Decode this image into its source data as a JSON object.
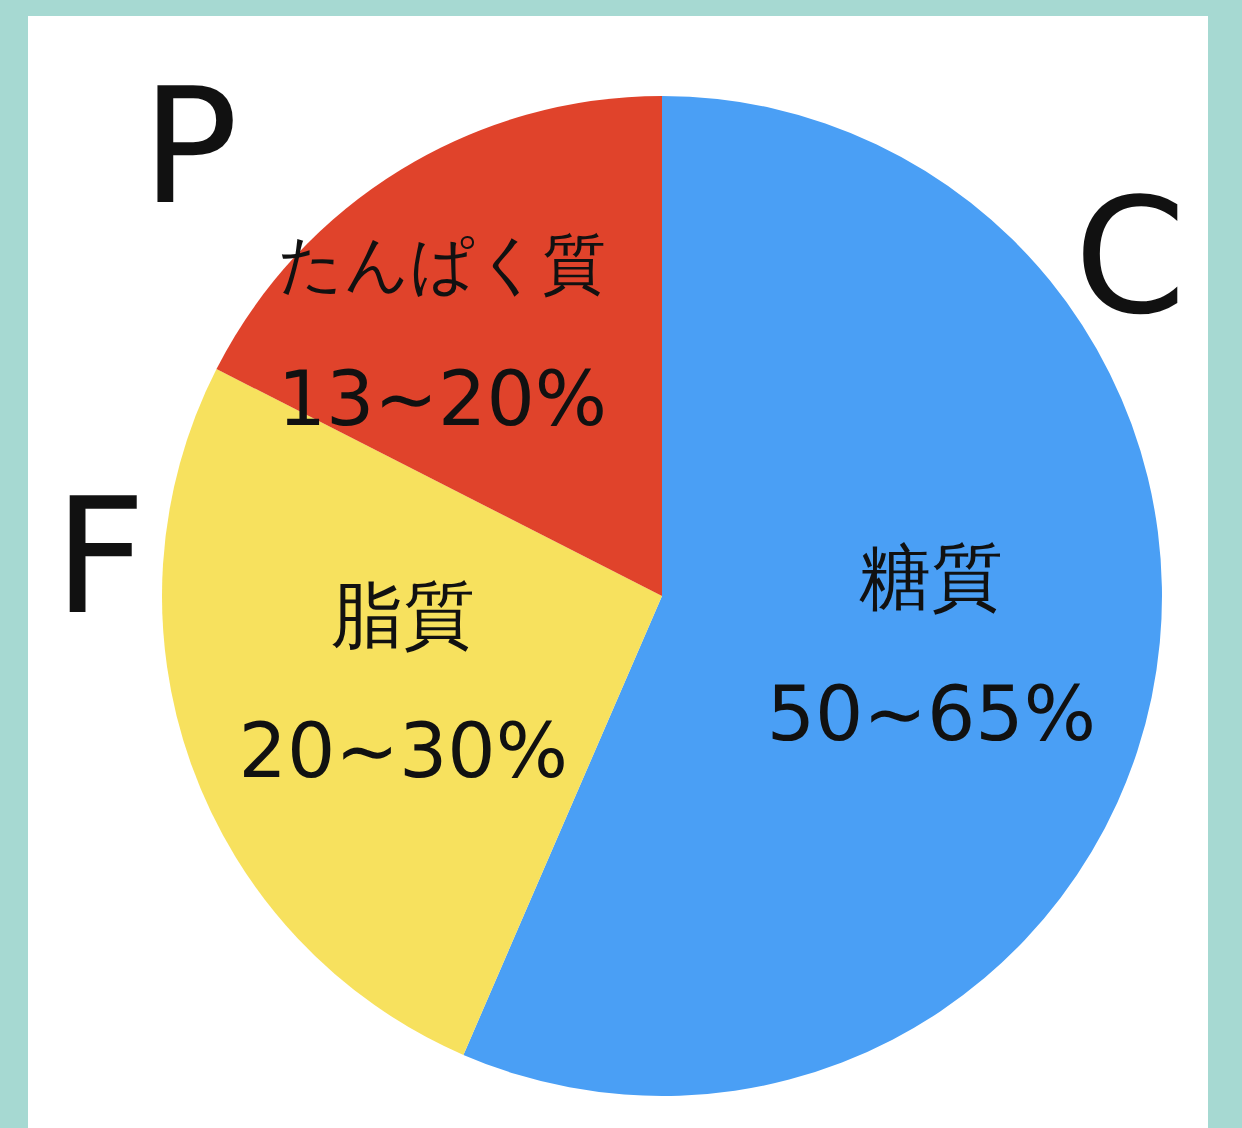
{
  "chart_data": {
    "type": "pie",
    "categories": [
      "糖質",
      "脂質",
      "たんぱく質"
    ],
    "values": [
      56.5,
      26,
      17.5
    ],
    "colors": [
      "#4a9ff5",
      "#f7e15e",
      "#e0432b"
    ],
    "annotations": [
      "50~65%",
      "20~30%",
      "13~20%",
      "C",
      "F",
      "P"
    ],
    "legend": false
  }
}
